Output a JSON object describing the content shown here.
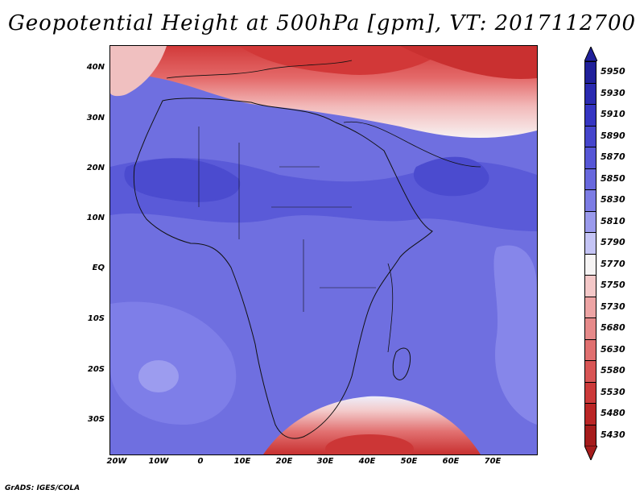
{
  "title": "Geopotential Height at 500hPa [gpm], VT: 2017112700",
  "footer": "GrADS: IGES/COLA",
  "lat_labels": [
    "40N",
    "30N",
    "20N",
    "10N",
    "EQ",
    "10S",
    "20S",
    "30S"
  ],
  "lon_labels": [
    "20W",
    "10W",
    "0",
    "10E",
    "20E",
    "30E",
    "40E",
    "50E",
    "60E",
    "70E"
  ],
  "colorbar": {
    "labels": [
      "5950",
      "5930",
      "5910",
      "5890",
      "5870",
      "5850",
      "5830",
      "5810",
      "5790",
      "5770",
      "5750",
      "5730",
      "5680",
      "5630",
      "5580",
      "5530",
      "5480",
      "5430"
    ],
    "colors": [
      "#20209a",
      "#2a2ab0",
      "#3535c2",
      "#4545cc",
      "#5656d6",
      "#6868dd",
      "#7c7ce4",
      "#9a9aec",
      "#c4c4f5",
      "#f6f4f4",
      "#f4c8c8",
      "#eda4a4",
      "#e68a8a",
      "#e07070",
      "#d85555",
      "#cc3a3a",
      "#bb2626",
      "#a61c1c"
    ]
  },
  "map": {
    "south_color": "#6f6fe0",
    "north_red": "#d94848"
  }
}
